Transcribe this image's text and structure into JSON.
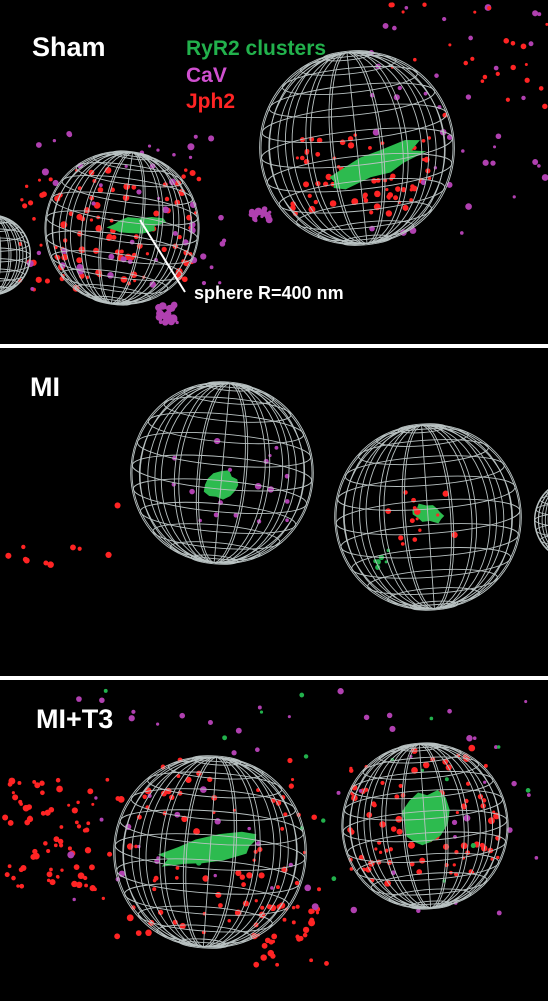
{
  "panels": [
    {
      "label": "Sham"
    },
    {
      "label": "MI"
    },
    {
      "label": "MI+T3"
    }
  ],
  "legend": [
    "RyR2 clusters",
    "CaV",
    "Jph2"
  ],
  "annotation": "sphere R=400 nm"
}
